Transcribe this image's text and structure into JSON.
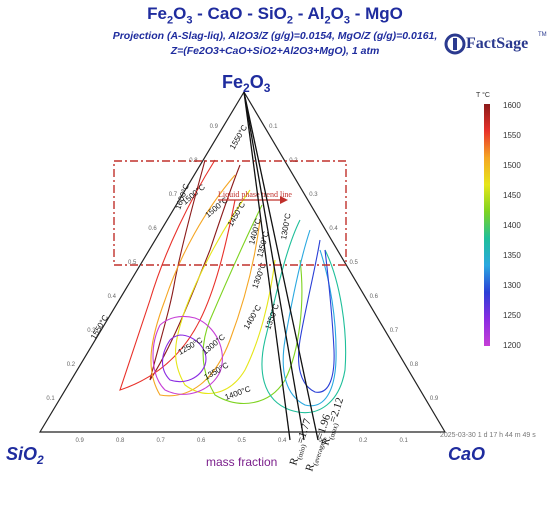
{
  "title": {
    "system": "Fe2O3 - CaO - SiO2 - Al2O3 - MgO",
    "parts": [
      {
        "t": "Fe",
        "sub": false
      },
      {
        "t": "2",
        "sub": true
      },
      {
        "t": "O",
        "sub": false
      },
      {
        "t": "3",
        "sub": true
      },
      {
        "t": " - CaO - SiO",
        "sub": false
      },
      {
        "t": "2",
        "sub": true
      },
      {
        "t": " - Al",
        "sub": false
      },
      {
        "t": "2",
        "sub": true
      },
      {
        "t": "O",
        "sub": false
      },
      {
        "t": "3",
        "sub": true
      },
      {
        "t": " - MgO",
        "sub": false
      }
    ]
  },
  "subtitle_line1": "Projection (A-Slag-liq), Al2O3/Z (g/g)=0.0154, MgO/Z (g/g)=0.0161,",
  "subtitle_line2": "Z=(Fe2O3+CaO+SiO2+Al2O3+MgO), 1 atm",
  "logo": {
    "text": "FactSage",
    "tm": "TM"
  },
  "vertices": {
    "top": "Fe2O3",
    "left": "SiO2",
    "right": "CaO"
  },
  "axis_caption": "mass fraction",
  "axis_ticks": [
    "0.1",
    "0.2",
    "0.3",
    "0.4",
    "0.5",
    "0.6",
    "0.7",
    "0.8",
    "0.9"
  ],
  "timestamp": "2025-03-30   1 d 17 h 44 m 49 s",
  "colorbar": {
    "unit": "T °C",
    "ticks": [
      "1600",
      "1550",
      "1500",
      "1450",
      "1400",
      "1350",
      "1300",
      "1250",
      "1200"
    ],
    "colors": [
      "#8b1a1a",
      "#e8312a",
      "#f5a623",
      "#e6e619",
      "#7ed321",
      "#1fbf9a",
      "#2aa8e0",
      "#2a3fd6",
      "#8a2be2",
      "#c63fd6"
    ]
  },
  "contour_labels": [
    "1550°C",
    "1500°C",
    "1450°C",
    "1400°C",
    "1350°C",
    "1300°C",
    "1600°C",
    "1500°C",
    "1400°C",
    "1350°C",
    "1550°C",
    "1250°C",
    "1300°C",
    "1350°C",
    "1400°C",
    "1300°C"
  ],
  "annotation": "Liquid phase trend line",
  "ratio_labels": [
    {
      "pre": "R",
      "sub": "(min)",
      "post": "=1.77"
    },
    {
      "pre": "R",
      "sub": "(average)",
      "post": "=1.96"
    },
    {
      "pre": "R",
      "sub": "(max)",
      "post": "=2.12"
    }
  ]
}
